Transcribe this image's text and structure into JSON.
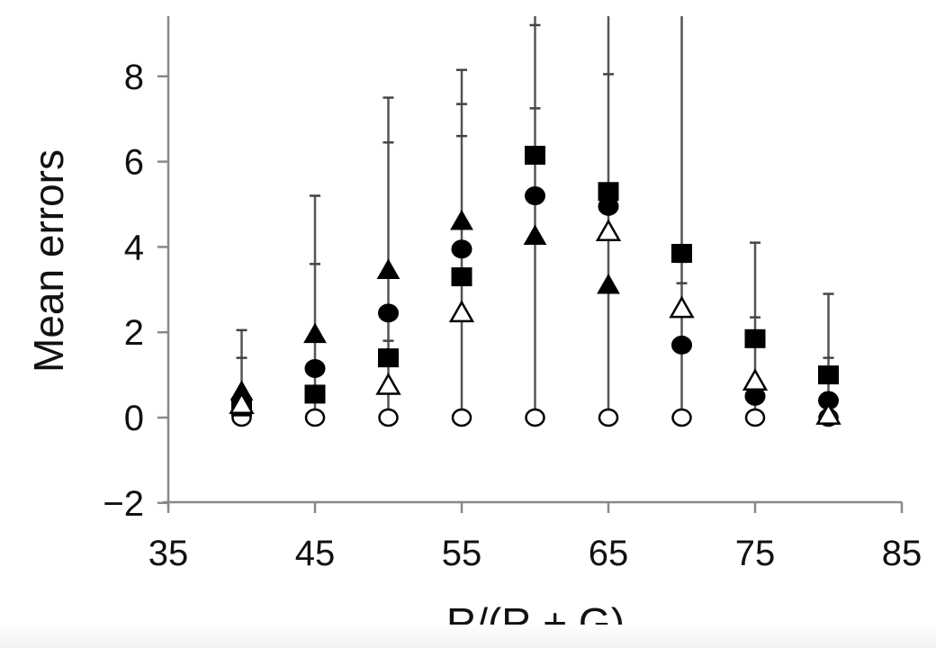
{
  "chart_data": {
    "type": "scatter",
    "title": "",
    "xlabel": "R/(R + G)",
    "ylabel": "Mean errors",
    "xlim": [
      35,
      85
    ],
    "ylim": [
      -2,
      9.4
    ],
    "x_ticks": [
      35,
      45,
      55,
      65,
      75,
      85
    ],
    "y_ticks": [
      -2,
      0,
      2,
      4,
      6,
      8
    ],
    "x_tick_labels": [
      "35",
      "45",
      "55",
      "65",
      "75",
      "85"
    ],
    "y_tick_labels": [
      "−2",
      "0",
      "2",
      "4",
      "6",
      "8"
    ],
    "grid": false,
    "legend": null,
    "x": [
      40,
      45,
      50,
      55,
      60,
      65,
      70,
      75,
      80
    ],
    "series": [
      {
        "name": "filled-square",
        "marker": "square",
        "filled": true,
        "values": [
          0.25,
          0.55,
          1.4,
          3.3,
          6.15,
          5.3,
          3.85,
          1.85,
          1.0
        ]
      },
      {
        "name": "filled-circle",
        "marker": "circle",
        "filled": true,
        "values": [
          0.35,
          1.15,
          2.45,
          3.95,
          5.2,
          4.95,
          1.7,
          0.5,
          0.4
        ]
      },
      {
        "name": "filled-triangle",
        "marker": "triangle",
        "filled": true,
        "values": [
          0.6,
          1.95,
          3.45,
          4.6,
          4.25,
          3.1,
          null,
          null,
          null
        ]
      },
      {
        "name": "open-triangle",
        "marker": "triangle",
        "filled": false,
        "values": [
          0.3,
          null,
          0.75,
          2.45,
          null,
          4.35,
          2.55,
          0.85,
          0.05
        ]
      },
      {
        "name": "open-circle",
        "marker": "circle",
        "filled": false,
        "values": [
          0,
          0,
          0,
          0,
          0,
          0,
          0,
          0,
          0
        ]
      }
    ],
    "error_bars": {
      "description": "Upper error bar caps per x (stacked vertical lines)",
      "caps": [
        [
          2.05,
          1.4
        ],
        [
          5.2,
          3.6,
          1.3
        ],
        [
          7.5,
          6.45,
          1.8
        ],
        [
          8.15,
          7.35,
          6.6
        ],
        [
          9.4,
          9.2,
          7.25
        ],
        [
          9.4,
          8.05
        ],
        [
          9.4,
          3.65,
          3.15
        ],
        [
          4.1,
          2.35
        ],
        [
          2.9,
          1.4
        ]
      ]
    }
  }
}
